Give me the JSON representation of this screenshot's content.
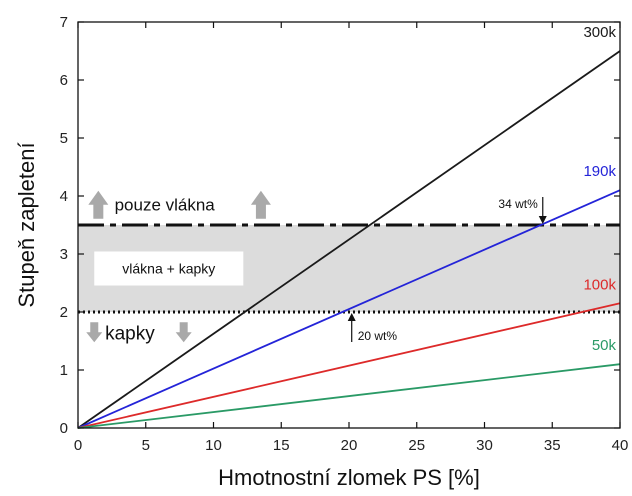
{
  "chart_data": {
    "type": "line",
    "xlabel": "Hmotnostní zlomek PS [%]",
    "ylabel": "Stupeň zapletení",
    "xlim": [
      0,
      40
    ],
    "ylim": [
      0,
      7
    ],
    "xticks": [
      0,
      5,
      10,
      15,
      20,
      25,
      30,
      35,
      40
    ],
    "yticks": [
      0,
      1,
      2,
      3,
      4,
      5,
      6,
      7
    ],
    "series": [
      {
        "name": "300k",
        "color": "#1a1a1a",
        "x": [
          0,
          40
        ],
        "y": [
          0,
          6.5
        ]
      },
      {
        "name": "190k",
        "color": "#2424d8",
        "x": [
          0,
          40
        ],
        "y": [
          0,
          4.1
        ]
      },
      {
        "name": "100k",
        "color": "#dd2a2a",
        "x": [
          0,
          40
        ],
        "y": [
          0,
          2.15
        ]
      },
      {
        "name": "50k",
        "color": "#2a9a66",
        "x": [
          0,
          40
        ],
        "y": [
          0,
          1.1
        ]
      }
    ],
    "thresholds": [
      {
        "y": 3.5,
        "style": "long-dash",
        "color": "#111111"
      },
      {
        "y": 2.0,
        "style": "dotted",
        "color": "#111111"
      }
    ],
    "shaded_band": {
      "y_from": 2.0,
      "y_to": 3.5,
      "color": "#dcdcdc"
    },
    "regions": [
      {
        "text": "pouze vlákna",
        "y": 3.85,
        "arrow": "up"
      },
      {
        "text": "vlákna + kapky",
        "y": 2.75
      },
      {
        "text": "kapky",
        "y": 1.65,
        "arrow": "down"
      }
    ],
    "annotations": [
      {
        "text": "34 wt%",
        "x": 34.3,
        "y": 3.5,
        "direction": "down"
      },
      {
        "text": "20 wt%",
        "x": 20.2,
        "y": 2.0,
        "direction": "up"
      }
    ]
  }
}
